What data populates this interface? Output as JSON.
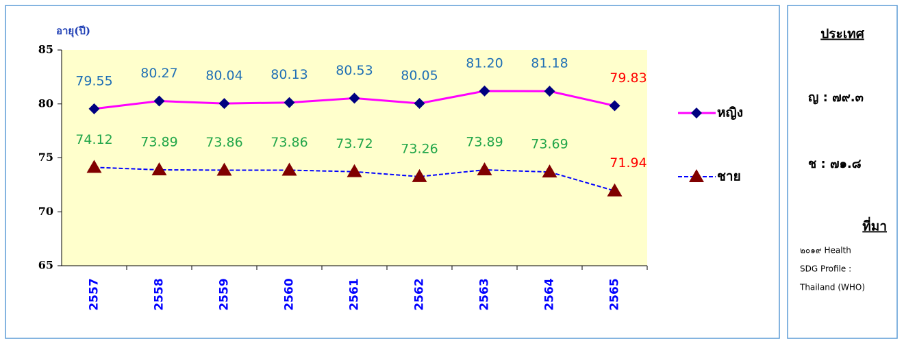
{
  "chart_data": {
    "type": "line",
    "ylabel": "อายุ(ปี)",
    "categories": [
      "2557",
      "2558",
      "2559",
      "2560",
      "2561",
      "2562",
      "2563",
      "2564",
      "2565"
    ],
    "ylim": [
      65,
      85
    ],
    "yticks": [
      65,
      70,
      75,
      80,
      85
    ],
    "series": [
      {
        "name": "หญิง",
        "color": "#ff00ff",
        "marker": "diamond",
        "marker_color": "#000080",
        "values": [
          79.55,
          80.27,
          80.04,
          80.13,
          80.53,
          80.05,
          81.2,
          81.18,
          79.83
        ],
        "value_labels": [
          "79.55",
          "80.27",
          "80.04",
          "80.13",
          "80.53",
          "80.05",
          "81.20",
          "81.18",
          "79.83"
        ],
        "label_colors": [
          "#1f6fb5",
          "#1f6fb5",
          "#1f6fb5",
          "#1f6fb5",
          "#1f6fb5",
          "#1f6fb5",
          "#1f6fb5",
          "#1f6fb5",
          "#ff0000"
        ]
      },
      {
        "name": "ชาย",
        "color": "#0000ff",
        "dashed": true,
        "marker": "triangle",
        "marker_color": "#800000",
        "values": [
          74.12,
          73.89,
          73.86,
          73.86,
          73.72,
          73.26,
          73.89,
          73.69,
          71.94
        ],
        "value_labels": [
          "74.12",
          "73.89",
          "73.86",
          "73.86",
          "73.72",
          "73.26",
          "73.89",
          "73.69",
          "71.94"
        ],
        "label_colors": [
          "#22a64a",
          "#22a64a",
          "#22a64a",
          "#22a64a",
          "#22a64a",
          "#22a64a",
          "#22a64a",
          "#22a64a",
          "#ff0000"
        ]
      }
    ]
  },
  "side_panel": {
    "heading": "ประเทศ",
    "female": "ญ : ๗๙.๓",
    "male": "ช : ๗๑.๘",
    "source_heading": "ที่มา",
    "source_lines": [
      "๒๐๑๙ Health",
      "SDG Profile :",
      "Thailand (WHO)"
    ]
  }
}
